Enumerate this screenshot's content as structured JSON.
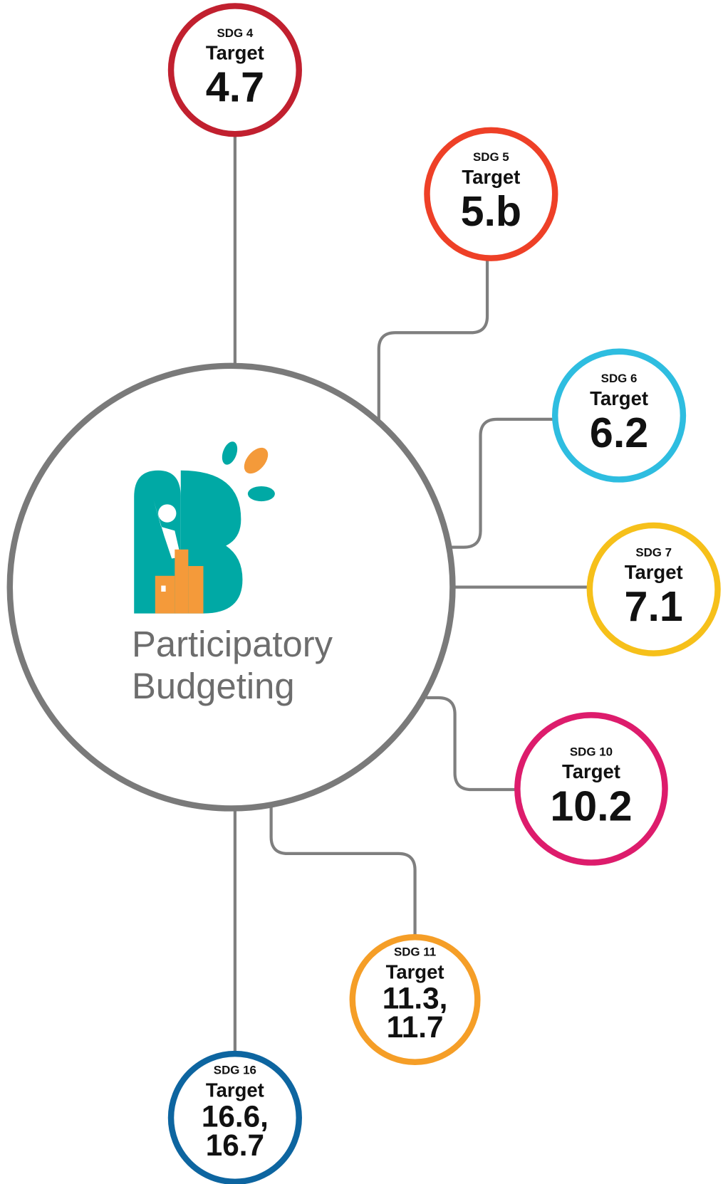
{
  "center": {
    "lines": [
      "Participatory",
      "Budgeting"
    ]
  },
  "nodes": [
    {
      "sdg": "SDG 4",
      "label": "Target",
      "target": [
        "4.7"
      ]
    },
    {
      "sdg": "SDG 5",
      "label": "Target",
      "target": [
        "5.b"
      ]
    },
    {
      "sdg": "SDG 6",
      "label": "Target",
      "target": [
        "6.2"
      ]
    },
    {
      "sdg": "SDG 7",
      "label": "Target",
      "target": [
        "7.1"
      ]
    },
    {
      "sdg": "SDG 10",
      "label": "Target",
      "target": [
        "10.2"
      ]
    },
    {
      "sdg": "SDG 11",
      "label": "Target",
      "target": [
        "11.3,",
        "11.7"
      ]
    },
    {
      "sdg": "SDG 16",
      "label": "Target",
      "target": [
        "16.6,",
        "16.7"
      ]
    }
  ]
}
